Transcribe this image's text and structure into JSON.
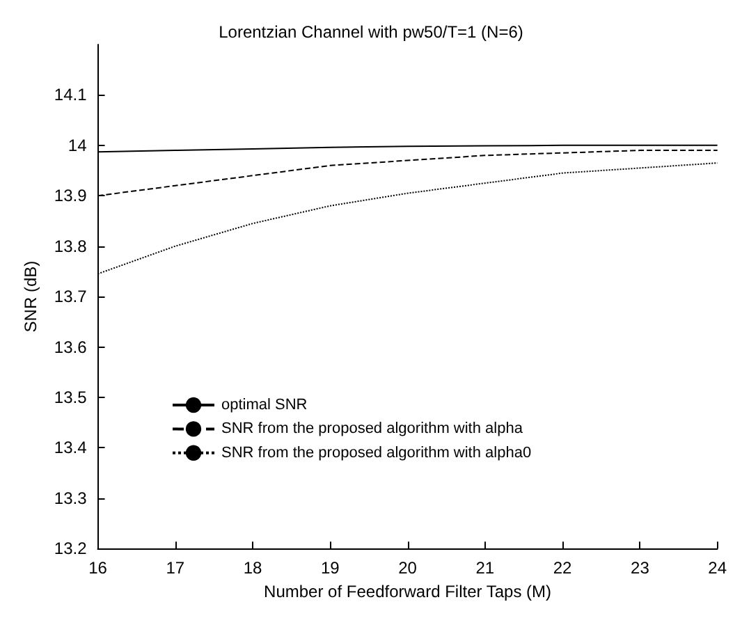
{
  "chart_data": {
    "type": "line",
    "title": "Lorentzian Channel with pw50/T=1 (N=6)",
    "xlabel": "Number of Feedforward Filter Taps (M)",
    "ylabel": "SNR (dB)",
    "x": [
      16,
      17,
      18,
      19,
      20,
      21,
      22,
      23,
      24
    ],
    "xlim": [
      16,
      24
    ],
    "xticks": [
      16,
      17,
      18,
      19,
      20,
      21,
      22,
      23,
      24
    ],
    "ylim": [
      13.2,
      14.2
    ],
    "yticks": [
      13.2,
      13.3,
      13.4,
      13.5,
      13.6,
      13.7,
      13.8,
      13.9,
      {
        "value": 14,
        "label": "14"
      },
      14.1
    ],
    "grid": false,
    "legend": "bottom left",
    "marker": "none",
    "series": [
      {
        "name": "optimal SNR",
        "color": "#000000",
        "line_style": "solid",
        "values": [
          13.987,
          13.99,
          13.993,
          13.996,
          13.998,
          13.999,
          14.0,
          14.0,
          14.0
        ]
      },
      {
        "name": "SNR from the proposed algorithm with alpha",
        "color": "#000000",
        "line_style": "dashed",
        "values": [
          13.9,
          13.92,
          13.94,
          13.96,
          13.97,
          13.98,
          13.985,
          13.99,
          13.99
        ]
      },
      {
        "name": "SNR from the proposed algorithm with alpha0",
        "color": "#000000",
        "line_style": "dotted",
        "values": [
          13.745,
          13.8,
          13.845,
          13.88,
          13.905,
          13.925,
          13.945,
          13.955,
          13.965
        ]
      }
    ]
  }
}
